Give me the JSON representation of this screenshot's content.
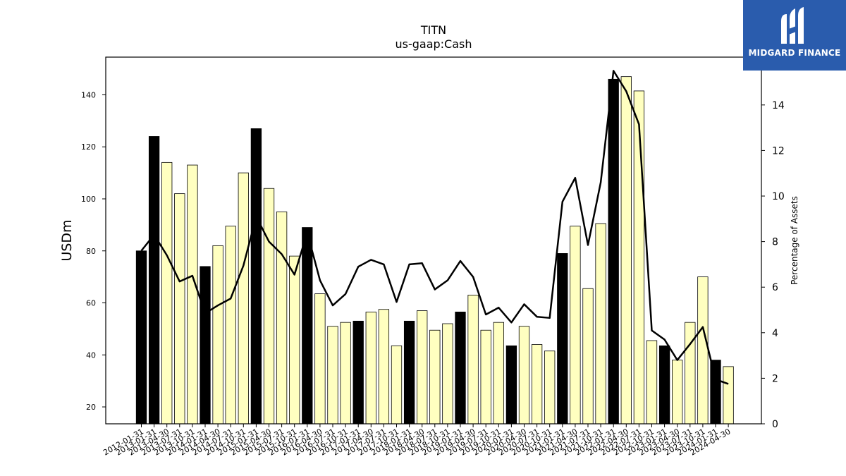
{
  "chart_data": {
    "type": "bar",
    "title": "TITN",
    "subtitle": "us-gaap:Cash",
    "ylabel": "USDm",
    "y2label": "Percentage of Assets",
    "ylim": [
      13.5,
      154.5
    ],
    "y2lim": [
      0,
      16.1
    ],
    "yticks": [
      20,
      40,
      60,
      80,
      100,
      120,
      140
    ],
    "y2ticks": [
      0,
      2,
      4,
      6,
      8,
      10,
      12,
      14
    ],
    "categories": [
      "2012-01-31",
      "2013-01-31",
      "2013-04-30",
      "2013-07-31",
      "2013-10-31",
      "2014-01-31",
      "2014-04-30",
      "2014-07-31",
      "2014-10-31",
      "2015-01-31",
      "2015-04-30",
      "2015-07-31",
      "2015-10-31",
      "2016-01-31",
      "2016-04-30",
      "2016-07-31",
      "2016-10-31",
      "2017-01-31",
      "2017-04-30",
      "2017-07-31",
      "2017-10-31",
      "2018-01-31",
      "2018-04-30",
      "2018-07-31",
      "2018-10-31",
      "2019-01-31",
      "2019-04-30",
      "2019-07-31",
      "2019-10-31",
      "2020-01-31",
      "2020-04-30",
      "2020-07-31",
      "2020-10-31",
      "2021-01-31",
      "2021-04-30",
      "2021-07-31",
      "2021-10-31",
      "2022-01-31",
      "2022-04-30",
      "2022-07-31",
      "2022-10-31",
      "2023-01-31",
      "2023-04-30",
      "2023-07-31",
      "2023-10-31",
      "2024-01-31",
      "2024-04-30"
    ],
    "series": [
      {
        "type": "bar",
        "values": [
          80,
          124,
          114,
          102,
          113,
          74,
          82,
          89.5,
          110,
          127,
          104,
          95,
          78,
          89,
          63.5,
          51,
          52.5,
          53,
          56.5,
          57.5,
          43.5,
          53,
          57,
          49.5,
          52,
          56.5,
          63,
          49.5,
          52.5,
          43.5,
          51,
          44,
          41.5,
          79,
          89.5,
          65.5,
          90.5,
          146,
          147,
          141.5,
          45.5,
          43.5,
          38,
          52.5,
          70,
          38,
          35.5
        ],
        "highlight": [
          true,
          true,
          false,
          false,
          false,
          true,
          false,
          false,
          false,
          true,
          false,
          false,
          false,
          true,
          false,
          false,
          false,
          true,
          false,
          false,
          false,
          true,
          false,
          false,
          false,
          true,
          false,
          false,
          false,
          true,
          false,
          false,
          false,
          true,
          false,
          false,
          false,
          true,
          false,
          false,
          false,
          true,
          false,
          false,
          false,
          true,
          false
        ]
      },
      {
        "type": "line",
        "axis": "right",
        "values": [
          7.6,
          8.3,
          7.4,
          6.25,
          6.5,
          4.85,
          5.2,
          5.5,
          6.95,
          9.1,
          8.0,
          7.45,
          6.55,
          8.4,
          6.3,
          5.2,
          5.7,
          6.9,
          7.2,
          7.0,
          5.35,
          7.0,
          7.05,
          5.9,
          6.3,
          7.15,
          6.45,
          4.8,
          5.1,
          4.45,
          5.25,
          4.7,
          4.65,
          9.75,
          10.8,
          7.85,
          10.6,
          15.5,
          14.6,
          13.15,
          4.1,
          3.7,
          2.8,
          3.5,
          4.25,
          1.95,
          1.75
        ]
      }
    ],
    "colors": {
      "highlight_bar": "#000000",
      "bar": "#ffffc0",
      "bar_edge": "#000000",
      "line": "#000000"
    },
    "grid": false
  },
  "logo": {
    "text": "MIDGARD FINANCE",
    "icon": "midgard-logo-icon",
    "color": "#2a5cad"
  }
}
